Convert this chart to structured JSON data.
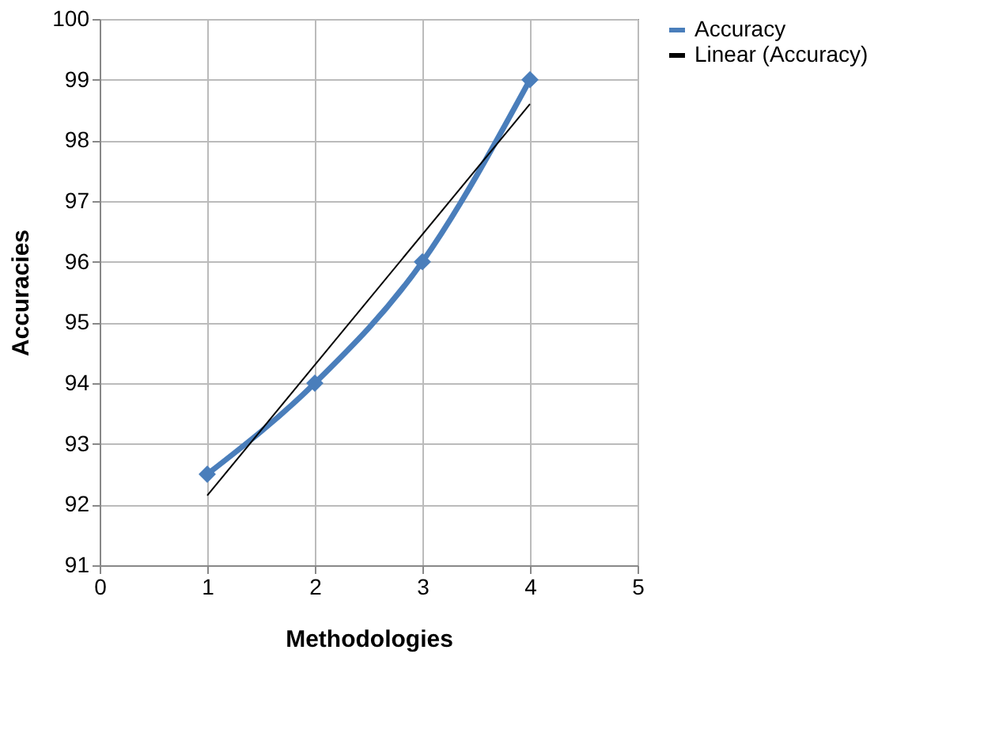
{
  "chart_data": {
    "type": "line",
    "xlabel": "Methodologies",
    "ylabel": "Accuracies",
    "x": [
      1,
      2,
      3,
      4
    ],
    "series": [
      {
        "name": "Accuracy",
        "color": "#4a7ebb",
        "values": [
          92.5,
          94,
          96,
          99
        ]
      },
      {
        "name": "Linear (Accuracy)",
        "color": "#000000",
        "x": [
          1,
          4
        ],
        "values": [
          92.15,
          98.6
        ],
        "marker": "none"
      }
    ],
    "xlim": [
      0,
      5
    ],
    "xticks": [
      0,
      1,
      2,
      3,
      4,
      5
    ],
    "ylim": [
      91,
      100
    ],
    "yticks": [
      91,
      92,
      93,
      94,
      95,
      96,
      97,
      98,
      99,
      100
    ],
    "grid": true,
    "legend": "right",
    "marker": "diamond",
    "line_style": "solid"
  }
}
